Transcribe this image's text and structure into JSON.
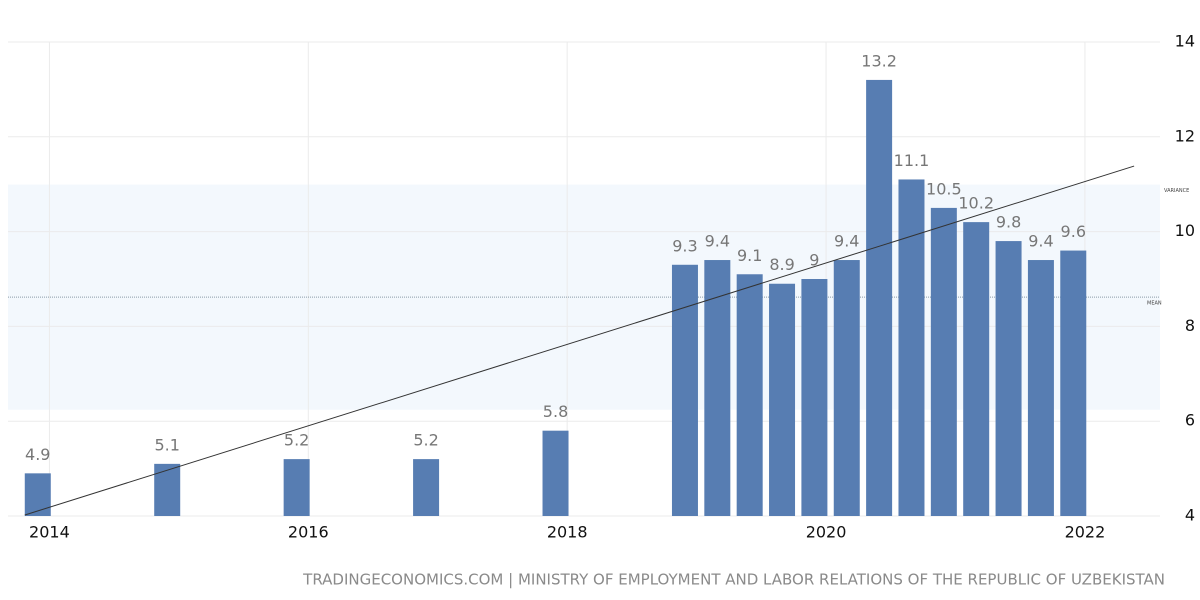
{
  "chart_data": {
    "type": "bar",
    "x": [
      2013.91,
      2014.91,
      2015.91,
      2016.91,
      2017.91,
      2018.91,
      2019.16,
      2019.41,
      2019.66,
      2019.91,
      2020.16,
      2020.41,
      2020.66,
      2020.91,
      2021.16,
      2021.41,
      2021.66,
      2021.91
    ],
    "values": [
      4.9,
      5.1,
      5.2,
      5.2,
      5.8,
      9.3,
      9.4,
      9.1,
      8.9,
      9,
      9.4,
      13.2,
      11.1,
      10.5,
      10.2,
      9.8,
      9.4,
      9.6
    ],
    "color": "#577db2",
    "xlim": [
      2013.68,
      2022.58
    ],
    "xticks": [
      2014,
      2016,
      2018,
      2020,
      2022
    ],
    "ylim": [
      4,
      14
    ],
    "yticks": [
      4,
      6,
      8,
      10,
      12,
      14
    ],
    "grid": true,
    "mean_label": "MEAN",
    "variance_label": "VARIANCE",
    "source": "TRADINGECONOMICS.COM | MINISTRY OF EMPLOYMENT AND LABOR RELATIONS OF THE REPUBLIC OF UZBEKISTAN"
  }
}
